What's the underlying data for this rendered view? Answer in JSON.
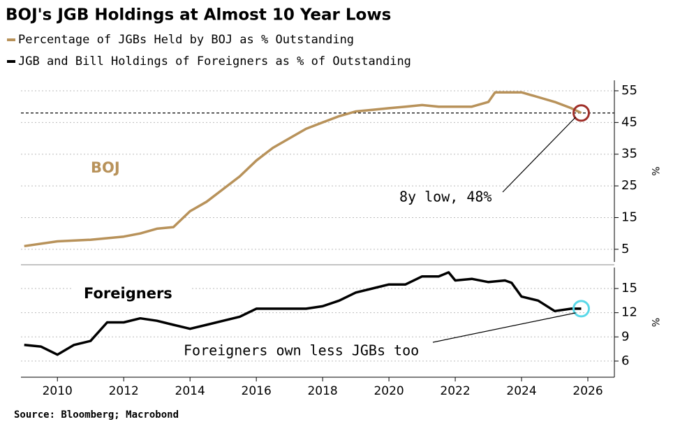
{
  "title": "BOJ's JGB Holdings at Almost 10 Year Lows",
  "source": "Source: Bloomberg; Macrobond",
  "chart_data": [
    {
      "type": "line",
      "label": "BOJ",
      "ylabel": "%",
      "xlim": [
        2008.9,
        2026.8
      ],
      "ylim": [
        1,
        58.3
      ],
      "yticks": [
        5,
        15,
        25,
        35,
        45,
        55
      ],
      "grid": true,
      "hline": 48,
      "annotations": [
        "8y low, 48%"
      ],
      "series": [
        {
          "name": "Percentage of JGBs Held by BOJ as % Outstanding",
          "color": "#b8925a",
          "x": [
            2009.0,
            2010.0,
            2011.0,
            2012.0,
            2012.5,
            2013.0,
            2013.5,
            2014.0,
            2014.5,
            2015.0,
            2015.5,
            2016.0,
            2016.5,
            2017.0,
            2017.5,
            2018.0,
            2018.5,
            2019.0,
            2019.5,
            2020.0,
            2020.5,
            2021.0,
            2021.5,
            2022.0,
            2022.5,
            2023.0,
            2023.2,
            2024.0,
            2024.5,
            2025.0,
            2025.5,
            2025.8
          ],
          "values": [
            6,
            7.5,
            8,
            9,
            10,
            11.5,
            12,
            17,
            20,
            24,
            28,
            33,
            37,
            40,
            43,
            45,
            47,
            48.5,
            49,
            49.5,
            50,
            50.5,
            50,
            50,
            50,
            51.5,
            54.5,
            54.5,
            53,
            51.5,
            49.5,
            48
          ]
        }
      ]
    },
    {
      "type": "line",
      "label": "Foreigners",
      "ylabel": "%",
      "xlim": [
        2008.9,
        2026.8
      ],
      "ylim": [
        4,
        17.6
      ],
      "yticks": [
        6,
        9,
        12,
        15
      ],
      "xticks": [
        2010,
        2012,
        2014,
        2016,
        2018,
        2020,
        2022,
        2024,
        2026
      ],
      "grid": true,
      "annotations": [
        "Foreigners own less JGBs too"
      ],
      "series": [
        {
          "name": "JGB and Bill Holdings of Foreigners as % of Outstanding",
          "color": "#000000",
          "x": [
            2009.0,
            2009.5,
            2010.0,
            2010.5,
            2011.0,
            2011.5,
            2012.0,
            2012.5,
            2013.0,
            2013.5,
            2014.0,
            2014.5,
            2015.0,
            2015.5,
            2016.0,
            2016.5,
            2017.0,
            2017.5,
            2018.0,
            2018.5,
            2019.0,
            2019.5,
            2020.0,
            2020.5,
            2021.0,
            2021.5,
            2021.8,
            2022.0,
            2022.5,
            2023.0,
            2023.5,
            2023.7,
            2024.0,
            2024.5,
            2025.0,
            2025.5,
            2025.8
          ],
          "values": [
            8,
            7.8,
            6.8,
            8,
            8.5,
            10.8,
            10.8,
            11.3,
            11,
            10.5,
            10,
            10.5,
            11,
            11.5,
            12.5,
            12.5,
            12.5,
            12.5,
            12.8,
            13.5,
            14.5,
            15,
            15.5,
            15.5,
            16.5,
            16.5,
            17,
            16,
            16.2,
            15.8,
            16,
            15.7,
            14,
            13.5,
            12.2,
            12.5,
            12.5
          ]
        }
      ]
    }
  ]
}
